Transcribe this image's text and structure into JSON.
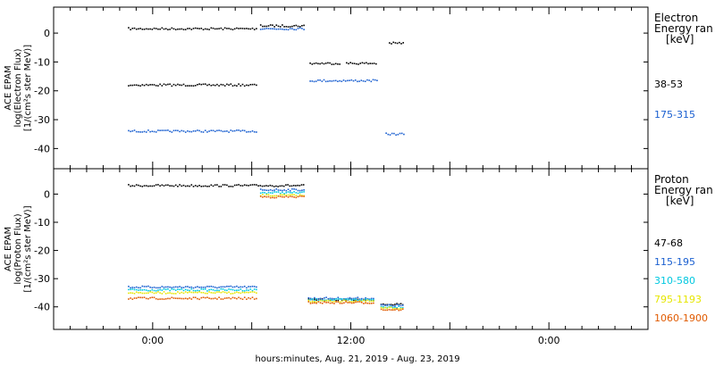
{
  "chart_data": [
    {
      "type": "scatter",
      "panel": "electron",
      "ylabel_lines": [
        "ACE EPAM",
        "log(Electron Flux)",
        "[1/(cm²s ster MeV)]"
      ],
      "ylim": [
        -47,
        9
      ],
      "yticks": [
        0,
        -10,
        -20,
        -30,
        -40
      ],
      "legend_title_lines": [
        "Electron",
        "Energy ran",
        "[keV]"
      ],
      "series": [
        {
          "name": "38-53",
          "color": "#000000",
          "segments": [
            {
              "x": [
                -1.5,
                6.35
              ],
              "y": 1.5
            },
            {
              "x": [
                -1.5,
                6.35
              ],
              "y": -18
            },
            {
              "x": [
                6.5,
                9.2
              ],
              "y": 2.5
            },
            {
              "x": [
                9.5,
                11.3
              ],
              "y": -10.5
            },
            {
              "x": [
                11.7,
                13.5
              ],
              "y": -10.5
            },
            {
              "x": [
                14.3,
                15.2
              ],
              "y": -3.5
            }
          ]
        },
        {
          "name": "175-315",
          "color": "#1a5fd0",
          "segments": [
            {
              "x": [
                -1.5,
                6.35
              ],
              "y": -34
            },
            {
              "x": [
                6.5,
                9.2
              ],
              "y": 1.5
            },
            {
              "x": [
                9.5,
                13.6
              ],
              "y": -16.5
            },
            {
              "x": [
                14.1,
                15.2
              ],
              "y": -35
            }
          ]
        }
      ]
    },
    {
      "type": "scatter",
      "panel": "proton",
      "ylabel_lines": [
        "ACE EPAM",
        "log(Proton Flux)",
        "[1/(cm²s ster MeV)]"
      ],
      "ylim": [
        -48,
        9
      ],
      "yticks": [
        0,
        -10,
        -20,
        -30,
        -40
      ],
      "legend_title_lines": [
        "Proton",
        "Energy ran",
        "[keV]"
      ],
      "series": [
        {
          "name": "47-68",
          "color": "#000000",
          "segments": [
            {
              "x": [
                -1.5,
                9.2
              ],
              "y": 3
            },
            {
              "x": [
                9.4,
                13.4
              ],
              "y": -37.5
            },
            {
              "x": [
                13.8,
                15.2
              ],
              "y": -39
            }
          ]
        },
        {
          "name": "115-195",
          "color": "#1a5fd0",
          "segments": [
            {
              "x": [
                -1.5,
                6.35
              ],
              "y": -33
            },
            {
              "x": [
                6.5,
                9.2
              ],
              "y": 1.5
            },
            {
              "x": [
                9.4,
                13.4
              ],
              "y": -37
            },
            {
              "x": [
                13.8,
                15.2
              ],
              "y": -39.5
            }
          ]
        },
        {
          "name": "310-580",
          "color": "#00c8e0",
          "segments": [
            {
              "x": [
                -1.5,
                6.35
              ],
              "y": -34
            },
            {
              "x": [
                6.5,
                9.2
              ],
              "y": 0.5
            },
            {
              "x": [
                9.4,
                13.4
              ],
              "y": -37.5
            },
            {
              "x": [
                13.8,
                15.2
              ],
              "y": -40
            }
          ]
        },
        {
          "name": "795-1193",
          "color": "#e6e600",
          "segments": [
            {
              "x": [
                -1.5,
                6.35
              ],
              "y": -35
            },
            {
              "x": [
                6.5,
                9.2
              ],
              "y": -0.5
            },
            {
              "x": [
                9.4,
                13.4
              ],
              "y": -38
            },
            {
              "x": [
                13.8,
                15.2
              ],
              "y": -40.5
            }
          ]
        },
        {
          "name": "1060-1900",
          "color": "#e05a00",
          "segments": [
            {
              "x": [
                -1.5,
                6.35
              ],
              "y": -37
            },
            {
              "x": [
                6.5,
                9.2
              ],
              "y": -1
            },
            {
              "x": [
                9.4,
                13.4
              ],
              "y": -38.5
            },
            {
              "x": [
                13.8,
                15.2
              ],
              "y": -41
            }
          ]
        }
      ]
    }
  ],
  "x_axis": {
    "xlim": [
      -6,
      30
    ],
    "tick_labels": [
      {
        "x": 0,
        "label": "0:00"
      },
      {
        "x": 12,
        "label": "12:00"
      },
      {
        "x": 24,
        "label": "0:00"
      }
    ],
    "xlabel": "hours:minutes, Aug. 21, 2019 - Aug. 23, 2019"
  }
}
